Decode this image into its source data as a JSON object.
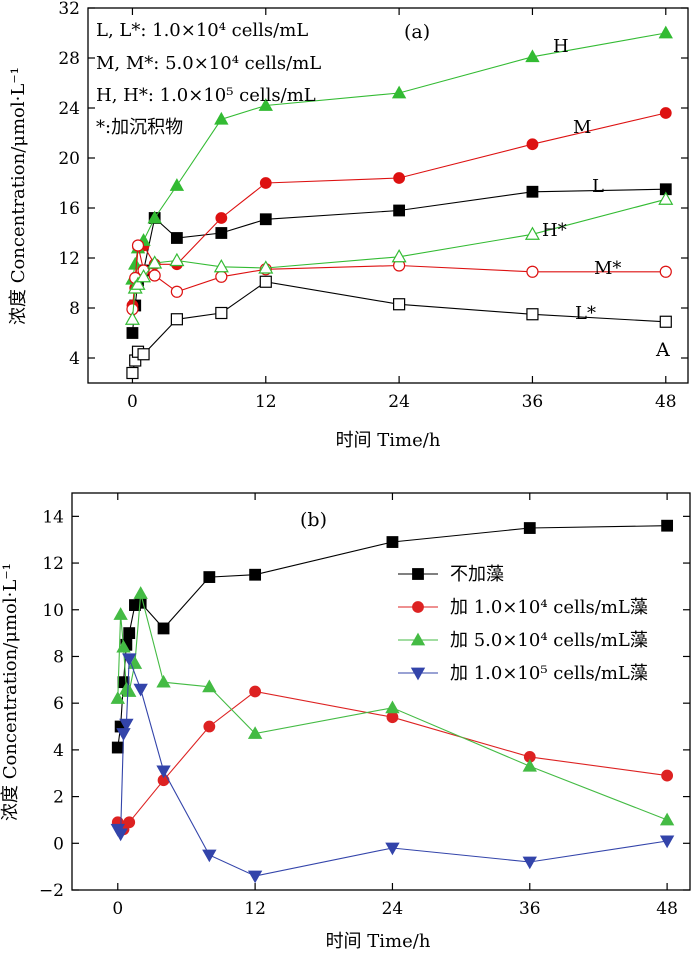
{
  "chart_data": [
    {
      "type": "line",
      "panel_label": "(a)",
      "corner_label": "A",
      "xlabel": "时间 Time/h",
      "ylabel": "浓度 Concentration/μmol·L⁻¹",
      "xlim": [
        -4,
        50
      ],
      "ylim": [
        2,
        32
      ],
      "xticks": [
        0,
        12,
        24,
        36,
        48
      ],
      "yticks": [
        4,
        8,
        12,
        16,
        20,
        24,
        28,
        32
      ],
      "annotations": [
        "L, L*: 1.0×10⁴ cells/mL",
        "M, M*: 5.0×10⁴ cells/mL",
        "H, H*: 1.0×10⁵ cells/mL",
        "*:加沉积物"
      ],
      "series": [
        {
          "name": "L",
          "color": "#000000",
          "marker": "square",
          "filled": true,
          "x": [
            0,
            0.25,
            0.5,
            1,
            2,
            4,
            8,
            12,
            24,
            36,
            48
          ],
          "y": [
            6.0,
            8.2,
            10.2,
            11.0,
            15.2,
            13.6,
            14.0,
            15.1,
            15.8,
            17.3,
            17.5
          ]
        },
        {
          "name": "M",
          "color": "#dd1111",
          "marker": "circle",
          "filled": true,
          "x": [
            0,
            0.25,
            0.5,
            1,
            2,
            4,
            8,
            12,
            24,
            36,
            48
          ],
          "y": [
            8.2,
            9.6,
            12.9,
            13.0,
            11.5,
            11.5,
            15.2,
            18.0,
            18.4,
            21.1,
            23.6
          ]
        },
        {
          "name": "H",
          "color": "#33bb33",
          "marker": "triangle",
          "filled": true,
          "x": [
            0,
            0.25,
            0.5,
            1,
            2,
            4,
            8,
            12,
            24,
            36,
            48
          ],
          "y": [
            10.3,
            11.5,
            12.8,
            13.4,
            15.2,
            17.8,
            23.1,
            24.2,
            25.2,
            28.1,
            30.0
          ]
        },
        {
          "name": "L*",
          "color": "#000000",
          "marker": "square",
          "filled": false,
          "x": [
            0,
            0.25,
            0.5,
            1,
            4,
            8,
            12,
            24,
            36,
            48
          ],
          "y": [
            2.8,
            3.8,
            4.5,
            4.3,
            7.1,
            7.6,
            10.1,
            8.3,
            7.5,
            6.9
          ]
        },
        {
          "name": "M*",
          "color": "#dd1111",
          "marker": "circle",
          "filled": false,
          "x": [
            0,
            0.25,
            0.5,
            1,
            2,
            4,
            8,
            12,
            24,
            36,
            48
          ],
          "y": [
            7.9,
            10.4,
            13.0,
            11.0,
            10.6,
            9.3,
            10.5,
            11.1,
            11.4,
            10.9,
            10.9
          ]
        },
        {
          "name": "H*",
          "color": "#33bb33",
          "marker": "triangle",
          "filled": false,
          "x": [
            0,
            0.25,
            0.5,
            1,
            2,
            4,
            8,
            12,
            24,
            36,
            48
          ],
          "y": [
            7.1,
            9.6,
            9.9,
            10.5,
            11.6,
            11.8,
            11.3,
            11.2,
            12.1,
            13.9,
            16.7
          ]
        }
      ]
    },
    {
      "type": "line",
      "panel_label": "(b)",
      "xlabel": "时间 Time/h",
      "ylabel": "浓度 Concentration/μmol·L⁻¹",
      "xlim": [
        -4,
        50
      ],
      "ylim": [
        -2,
        15
      ],
      "xticks": [
        0,
        12,
        24,
        36,
        48
      ],
      "yticks": [
        -2,
        0,
        2,
        4,
        6,
        8,
        10,
        12,
        14
      ],
      "legend_position": "right",
      "series": [
        {
          "name": "不加藻",
          "color": "#000000",
          "marker": "square",
          "filled": true,
          "x": [
            0,
            0.25,
            0.5,
            0.75,
            1,
            1.5,
            2,
            4,
            8,
            12,
            24,
            36,
            48
          ],
          "y": [
            4.1,
            5.0,
            6.9,
            8.5,
            9.0,
            10.2,
            10.3,
            9.2,
            11.4,
            11.5,
            12.9,
            13.5,
            13.6
          ]
        },
        {
          "name": "加 1.0×10⁴ cells/mL藻",
          "color": "#dd2222",
          "marker": "circle",
          "filled": true,
          "x": [
            0,
            0.25,
            0.5,
            1,
            4,
            8,
            12,
            24,
            36,
            48
          ],
          "y": [
            0.9,
            0.6,
            0.6,
            0.9,
            2.7,
            5.0,
            6.5,
            5.4,
            3.7,
            2.9
          ]
        },
        {
          "name": "加 5.0×10⁴ cells/mL藻",
          "color": "#44bb44",
          "marker": "triangle",
          "filled": true,
          "x": [
            0,
            0.25,
            0.5,
            0.75,
            1,
            1.5,
            2,
            4,
            8,
            12,
            24,
            36,
            48
          ],
          "y": [
            6.2,
            9.8,
            8.4,
            6.6,
            6.5,
            7.7,
            10.7,
            6.9,
            6.7,
            4.7,
            5.8,
            3.3,
            1.0
          ]
        },
        {
          "name": "加 1.0×10⁵ cells/mL藻",
          "color": "#3344aa",
          "marker": "triangle-down",
          "filled": true,
          "x": [
            0,
            0.25,
            0.5,
            0.75,
            1,
            2,
            4,
            8,
            12,
            24,
            36,
            48
          ],
          "y": [
            0.6,
            0.4,
            4.7,
            5.1,
            7.9,
            6.6,
            3.1,
            -0.5,
            -1.4,
            -0.2,
            -0.8,
            0.1
          ]
        }
      ]
    }
  ]
}
